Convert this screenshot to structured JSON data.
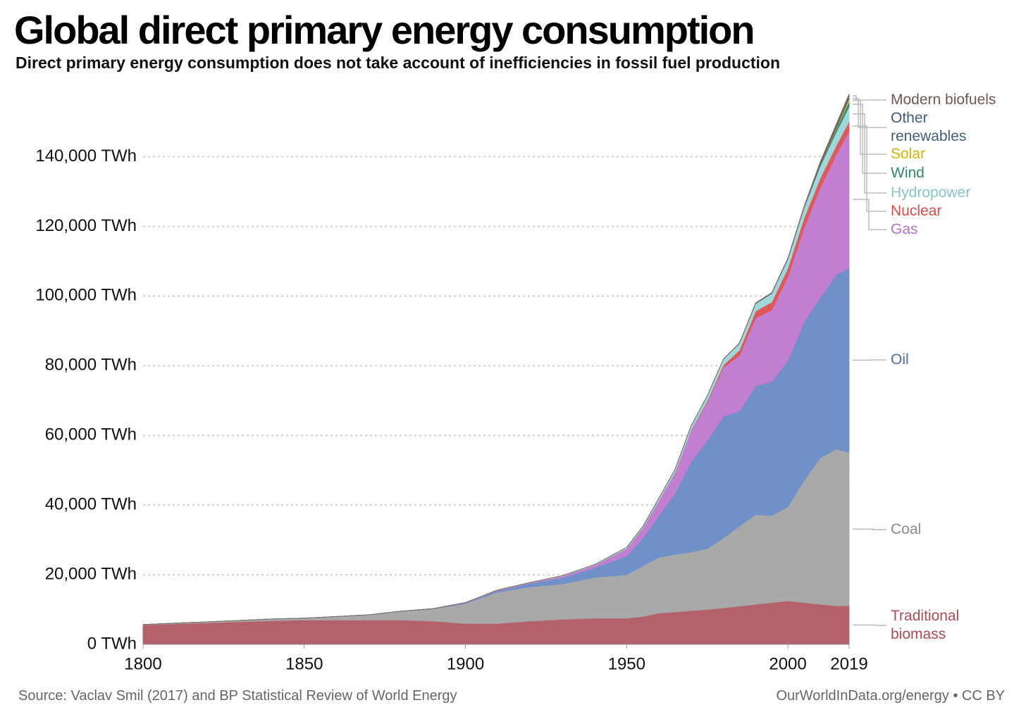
{
  "chart_data": {
    "type": "stacked_area",
    "title": "Global direct primary energy consumption",
    "subtitle": "Direct primary energy consumption does not take account of inefficiencies in fossil fuel production",
    "source": "Source: Vaclav Smil (2017) and BP Statistical Review of World Energy",
    "credit": "OurWorldInData.org/energy • CC BY",
    "x": [
      1800,
      1810,
      1820,
      1830,
      1840,
      1850,
      1860,
      1870,
      1880,
      1890,
      1900,
      1910,
      1920,
      1930,
      1940,
      1950,
      1955,
      1960,
      1965,
      1970,
      1975,
      1980,
      1985,
      1990,
      1995,
      2000,
      2005,
      2010,
      2015,
      2019
    ],
    "xlim": [
      1800,
      2019
    ],
    "xticks": [
      1800,
      1850,
      1900,
      1950,
      2000,
      2019
    ],
    "ylim": [
      0,
      160000
    ],
    "yticks": [
      {
        "value": 0,
        "label": "0 TWh"
      },
      {
        "value": 20000,
        "label": "20,000 TWh"
      },
      {
        "value": 40000,
        "label": "40,000 TWh"
      },
      {
        "value": 60000,
        "label": "60,000 TWh"
      },
      {
        "value": 80000,
        "label": "80,000 TWh"
      },
      {
        "value": 100000,
        "label": "100,000 TWh"
      },
      {
        "value": 120000,
        "label": "120,000 TWh"
      },
      {
        "value": 140000,
        "label": "140,000 TWh"
      }
    ],
    "grid": true,
    "series": [
      {
        "name": "Traditional biomass",
        "color": "#b3616a",
        "label_color": "#b24a55",
        "values": [
          5600,
          5900,
          6200,
          6500,
          6800,
          7000,
          7000,
          7000,
          7000,
          6700,
          6000,
          6000,
          6700,
          7200,
          7500,
          7500,
          8000,
          9000,
          9300,
          9700,
          10000,
          10500,
          11000,
          11500,
          12000,
          12500,
          12000,
          11500,
          11100,
          11100
        ]
      },
      {
        "name": "Coal",
        "color": "#a9a9a9",
        "label_color": "#8a8a8a",
        "values": [
          100,
          200,
          300,
          400,
          500,
          570,
          1000,
          1500,
          2500,
          3500,
          5700,
          9000,
          9800,
          10100,
          11700,
          12500,
          14500,
          16000,
          16500,
          16800,
          17500,
          20000,
          23000,
          25700,
          25000,
          27000,
          35000,
          42000,
          45000,
          44000
        ]
      },
      {
        "name": "Oil",
        "color": "#7090c8",
        "label_color": "#4d6fa8",
        "values": [
          0,
          0,
          0,
          0,
          0,
          0,
          0,
          10,
          50,
          100,
          200,
          400,
          1000,
          1800,
          2800,
          5400,
          8000,
          12000,
          17500,
          26000,
          31000,
          35000,
          33000,
          37000,
          38500,
          42000,
          45500,
          46000,
          50000,
          53000
        ]
      },
      {
        "name": "Gas",
        "color": "#c27fd2",
        "label_color": "#b873c9",
        "values": [
          0,
          0,
          0,
          0,
          0,
          0,
          0,
          0,
          0,
          0,
          100,
          200,
          200,
          500,
          700,
          2100,
          2900,
          4300,
          6000,
          9000,
          11000,
          14000,
          16000,
          19500,
          20500,
          24000,
          27000,
          31500,
          34500,
          39300
        ]
      },
      {
        "name": "Nuclear",
        "color": "#e05858",
        "label_color": "#e04848",
        "values": [
          0,
          0,
          0,
          0,
          0,
          0,
          0,
          0,
          0,
          0,
          0,
          0,
          0,
          0,
          0,
          0,
          0,
          0,
          20,
          80,
          400,
          700,
          1500,
          2000,
          2300,
          2500,
          2800,
          2750,
          2600,
          2800
        ]
      },
      {
        "name": "Hydropower",
        "color": "#9fd7da",
        "label_color": "#88c4d0",
        "values": [
          0,
          0,
          0,
          0,
          0,
          0,
          0,
          0,
          0,
          0,
          20,
          40,
          70,
          130,
          190,
          340,
          450,
          690,
          900,
          1200,
          1450,
          1700,
          1950,
          2150,
          2450,
          2650,
          2900,
          3450,
          3850,
          4200
        ]
      },
      {
        "name": "Wind",
        "color": "#2e8a68",
        "label_color": "#2e8a68",
        "values": [
          0,
          0,
          0,
          0,
          0,
          0,
          0,
          0,
          0,
          0,
          0,
          0,
          0,
          0,
          0,
          0,
          0,
          0,
          0,
          0,
          0,
          0,
          0,
          10,
          15,
          30,
          100,
          340,
          830,
          1420
        ]
      },
      {
        "name": "Solar",
        "color": "#e8c52a",
        "label_color": "#dcb400",
        "values": [
          0,
          0,
          0,
          0,
          0,
          0,
          0,
          0,
          0,
          0,
          0,
          0,
          0,
          0,
          0,
          0,
          0,
          0,
          0,
          0,
          0,
          0,
          0,
          0,
          0,
          0,
          5,
          30,
          250,
          720
        ]
      },
      {
        "name": "Other renewables",
        "color": "#4b6b8b",
        "label_color": "#3f5f82",
        "values": [
          0,
          0,
          0,
          0,
          0,
          0,
          0,
          0,
          0,
          0,
          0,
          0,
          0,
          0,
          0,
          0,
          0,
          0,
          0,
          0,
          0,
          40,
          70,
          100,
          120,
          150,
          200,
          250,
          350,
          400
        ]
      },
      {
        "name": "Modern biofuels",
        "color": "#7a6660",
        "label_color": "#6e5a55",
        "values": [
          0,
          0,
          0,
          0,
          0,
          0,
          0,
          0,
          0,
          0,
          0,
          0,
          0,
          0,
          0,
          0,
          0,
          0,
          0,
          0,
          0,
          0,
          50,
          90,
          100,
          110,
          200,
          650,
          850,
          1100
        ]
      }
    ]
  }
}
